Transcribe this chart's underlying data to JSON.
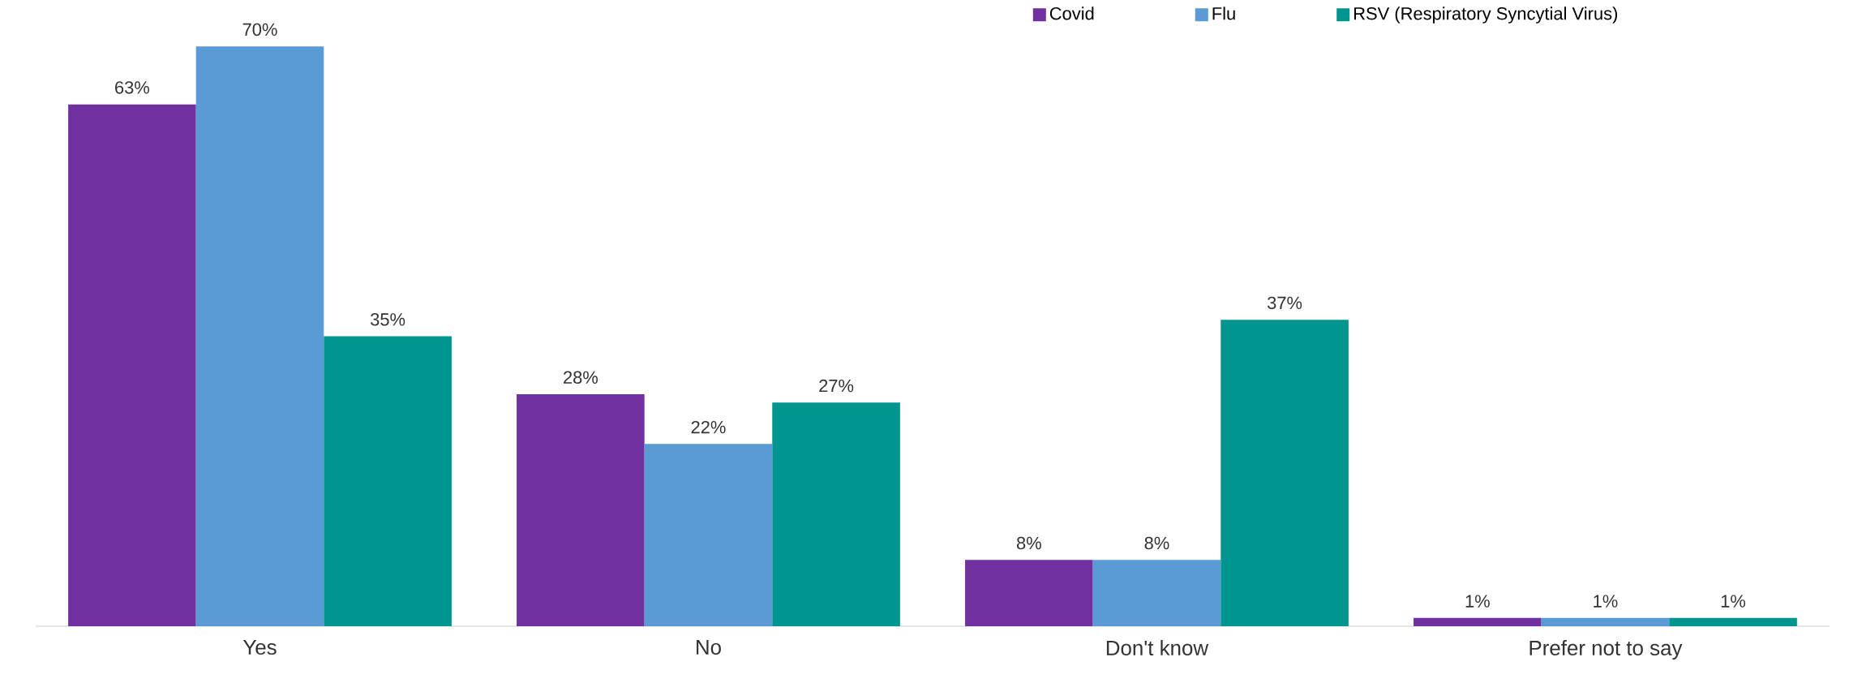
{
  "chart_data": {
    "type": "bar",
    "categories": [
      "Yes",
      "No",
      "Don't know",
      "Prefer not to say"
    ],
    "series": [
      {
        "name": "Covid",
        "color": "#7030a0",
        "values": [
          63,
          28,
          8,
          1
        ],
        "value_labels": [
          "63%",
          "28%",
          "8%",
          "1%"
        ]
      },
      {
        "name": "Flu",
        "color": "#5b9bd5",
        "values": [
          70,
          22,
          8,
          1
        ],
        "value_labels": [
          "70%",
          "22%",
          "8%",
          "1%"
        ]
      },
      {
        "name": "RSV (Respiratory Syncytial Virus)",
        "color": "#00968f",
        "values": [
          35,
          27,
          37,
          1
        ],
        "value_labels": [
          "35%",
          "27%",
          "37%",
          "1%"
        ]
      }
    ],
    "legend": "top"
  }
}
